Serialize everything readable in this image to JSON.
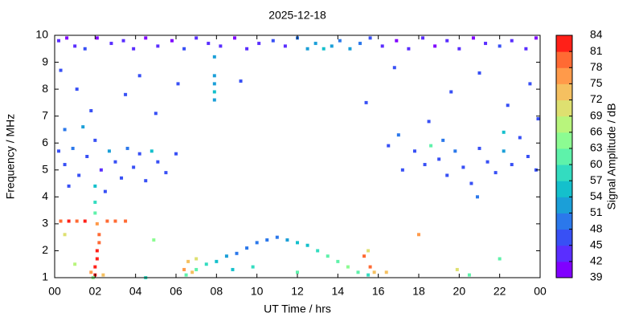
{
  "chart_data": {
    "type": "scatter",
    "title": "2025-12-18",
    "x_label": "UT Time / hrs",
    "y_label": "Frequency / MHz",
    "colorbar_label": "Signal Amplitude / dB",
    "xlim": [
      0,
      24
    ],
    "xticks": [
      {
        "value": 0,
        "label": "00"
      },
      {
        "value": 2,
        "label": "02"
      },
      {
        "value": 4,
        "label": "04"
      },
      {
        "value": 6,
        "label": "06"
      },
      {
        "value": 8,
        "label": "08"
      },
      10,
      12,
      14,
      16,
      18,
      20,
      22,
      {
        "value": 24,
        "label": "00"
      }
    ],
    "ylim": [
      1,
      10
    ],
    "yticks": [
      1,
      2,
      3,
      4,
      5,
      6,
      7,
      8,
      9,
      10
    ],
    "zlim": [
      39,
      84
    ],
    "zticks": [
      39,
      42,
      45,
      48,
      51,
      54,
      57,
      60,
      63,
      66,
      69,
      72,
      75,
      78,
      81,
      84
    ],
    "colormap": [
      "#8000ff",
      "#5a2eff",
      "#3850f5",
      "#2b78eb",
      "#1b9fd8",
      "#14c0cc",
      "#33dcc0",
      "#5ef2aa",
      "#8cfc92",
      "#b8f57c",
      "#dee070",
      "#f5c060",
      "#ff9a4a",
      "#ff6a33",
      "#ff2018"
    ],
    "x": [
      0.2,
      0.6,
      1.0,
      1.5,
      2.1,
      2.8,
      3.4,
      3.9,
      4.5,
      5.1,
      5.8,
      6.4,
      7.0,
      7.6,
      8.2,
      8.9,
      9.5,
      10.1,
      10.8,
      11.4,
      12.0,
      12.5,
      12.9,
      13.3,
      13.7,
      14.1,
      14.6,
      15.1,
      15.6,
      16.2,
      16.9,
      17.5,
      18.2,
      18.8,
      19.4,
      20.0,
      20.7,
      21.3,
      22.0,
      22.6,
      23.3,
      23.8,
      0.3,
      1.1,
      1.8,
      3.5,
      4.2,
      5.0,
      6.1,
      9.2,
      15.4,
      16.8,
      18.5,
      19.6,
      21.0,
      22.4,
      23.5,
      23.9,
      0.5,
      1.4,
      17.0,
      22.2,
      7.9,
      7.9,
      7.9,
      7.9,
      7.9,
      0.2,
      0.5,
      0.9,
      1.2,
      1.6,
      2.0,
      2.3,
      2.7,
      3.0,
      3.3,
      3.6,
      3.9,
      4.2,
      4.5,
      4.8,
      5.1,
      5.5,
      6.0,
      0.7,
      2.5,
      17.8,
      18.3,
      18.6,
      19.0,
      19.4,
      19.8,
      20.2,
      20.6,
      21.0,
      21.4,
      21.8,
      22.2,
      22.6,
      23.0,
      23.4,
      23.8,
      20.9,
      16.5,
      17.2,
      19.2,
      2.0,
      2.0,
      2.1,
      2.1,
      2.2,
      2.2,
      2.1,
      2.0,
      2.0,
      2.0,
      1.8,
      2.4,
      0.3,
      0.7,
      1.1,
      1.5,
      2.6,
      3.0,
      3.5,
      6.5,
      7.0,
      7.5,
      8.0,
      8.5,
      9.0,
      9.5,
      10.0,
      10.5,
      11.0,
      11.5,
      12.0,
      12.5,
      13.0,
      13.5,
      14.0,
      14.5,
      15.0,
      15.5,
      6.4,
      6.6,
      6.8,
      7.0,
      15.3,
      15.6,
      15.8,
      15.5,
      16.4,
      19.9,
      1.9,
      4.5,
      9.8,
      12.0,
      18.0,
      20.5,
      4.9,
      22.0,
      0.5,
      1.0,
      8.8
    ],
    "y": [
      9.8,
      9.9,
      9.6,
      9.5,
      9.9,
      9.7,
      9.8,
      9.5,
      9.9,
      9.6,
      9.8,
      9.5,
      9.9,
      9.7,
      9.6,
      9.9,
      9.5,
      9.7,
      9.8,
      9.6,
      9.9,
      9.5,
      9.7,
      9.5,
      9.6,
      9.8,
      9.5,
      9.7,
      9.9,
      9.6,
      9.8,
      9.5,
      9.9,
      9.6,
      9.8,
      9.5,
      9.9,
      9.7,
      9.6,
      9.8,
      9.5,
      9.9,
      8.7,
      8.0,
      7.2,
      7.8,
      8.5,
      7.1,
      8.2,
      8.3,
      7.5,
      8.8,
      6.8,
      7.9,
      8.6,
      7.4,
      8.2,
      6.9,
      6.5,
      6.6,
      6.3,
      6.4,
      7.6,
      7.9,
      8.2,
      8.5,
      9.2,
      5.7,
      5.2,
      5.8,
      4.8,
      5.5,
      6.1,
      5.0,
      5.7,
      5.3,
      4.7,
      5.8,
      5.1,
      5.6,
      4.6,
      5.7,
      5.3,
      4.9,
      5.6,
      4.4,
      4.2,
      5.7,
      5.2,
      5.9,
      5.4,
      4.8,
      5.7,
      5.1,
      4.5,
      5.8,
      5.3,
      4.9,
      5.7,
      5.2,
      6.2,
      5.5,
      5.0,
      4.0,
      5.9,
      5.0,
      6.1,
      1.1,
      1.4,
      1.7,
      2.0,
      2.3,
      2.6,
      3.0,
      3.4,
      3.8,
      4.4,
      1.2,
      1.1,
      3.1,
      3.1,
      3.1,
      3.1,
      3.1,
      3.1,
      3.1,
      1.1,
      1.3,
      1.5,
      1.6,
      1.8,
      1.9,
      2.1,
      2.3,
      2.4,
      2.5,
      2.4,
      2.3,
      2.2,
      2.0,
      1.8,
      1.6,
      1.4,
      1.2,
      1.1,
      1.3,
      1.6,
      1.2,
      1.7,
      1.8,
      1.4,
      1.2,
      2.0,
      1.2,
      1.3,
      1.0,
      1.0,
      1.4,
      1.2,
      2.6,
      1.1,
      2.4,
      1.7,
      2.6,
      1.5,
      1.3
    ],
    "values": [
      42,
      40,
      44,
      45,
      41,
      43,
      42,
      44,
      40,
      43,
      41,
      45,
      42,
      44,
      43,
      41,
      44,
      42,
      45,
      43,
      48,
      51,
      53,
      54,
      52,
      50,
      53,
      48,
      45,
      43,
      41,
      44,
      42,
      40,
      43,
      44,
      41,
      42,
      45,
      43,
      44,
      40,
      46,
      47,
      46,
      47,
      46,
      47,
      46,
      47,
      46,
      47,
      46,
      47,
      46,
      47,
      46,
      47,
      50,
      53,
      48,
      54,
      52,
      54,
      53,
      51,
      52,
      47,
      45,
      50,
      46,
      45,
      47,
      44,
      52,
      46,
      45,
      48,
      45,
      46,
      47,
      55,
      45,
      46,
      45,
      46,
      47,
      47,
      46,
      62,
      45,
      46,
      48,
      45,
      47,
      46,
      45,
      46,
      52,
      45,
      47,
      46,
      45,
      48,
      47,
      46,
      50,
      82,
      84,
      81,
      83,
      80,
      78,
      75,
      60,
      57,
      55,
      76,
      72,
      79,
      81,
      80,
      82,
      78,
      80,
      79,
      60,
      62,
      58,
      56,
      52,
      50,
      49,
      50,
      48,
      50,
      52,
      54,
      56,
      58,
      60,
      62,
      64,
      61,
      58,
      75,
      72,
      73,
      70,
      78,
      80,
      74,
      70,
      72,
      70,
      65,
      57,
      58,
      60,
      75,
      60,
      63,
      62,
      70,
      66,
      56
    ]
  }
}
